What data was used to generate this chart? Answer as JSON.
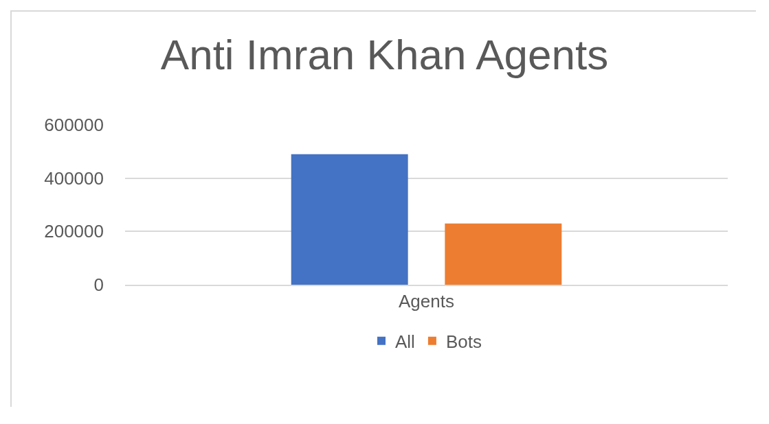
{
  "chart_data": {
    "type": "bar",
    "title": "Anti Imran Khan Agents",
    "categories": [
      "Agents"
    ],
    "series": [
      {
        "name": "All",
        "color": "#4472c4",
        "values": [
          490000
        ]
      },
      {
        "name": "Bots",
        "color": "#ed7d31",
        "values": [
          230000
        ]
      }
    ],
    "ylim": [
      0,
      600000
    ],
    "yticks": [
      0,
      200000,
      400000,
      600000
    ],
    "grid": "y",
    "legend": "bottom"
  }
}
